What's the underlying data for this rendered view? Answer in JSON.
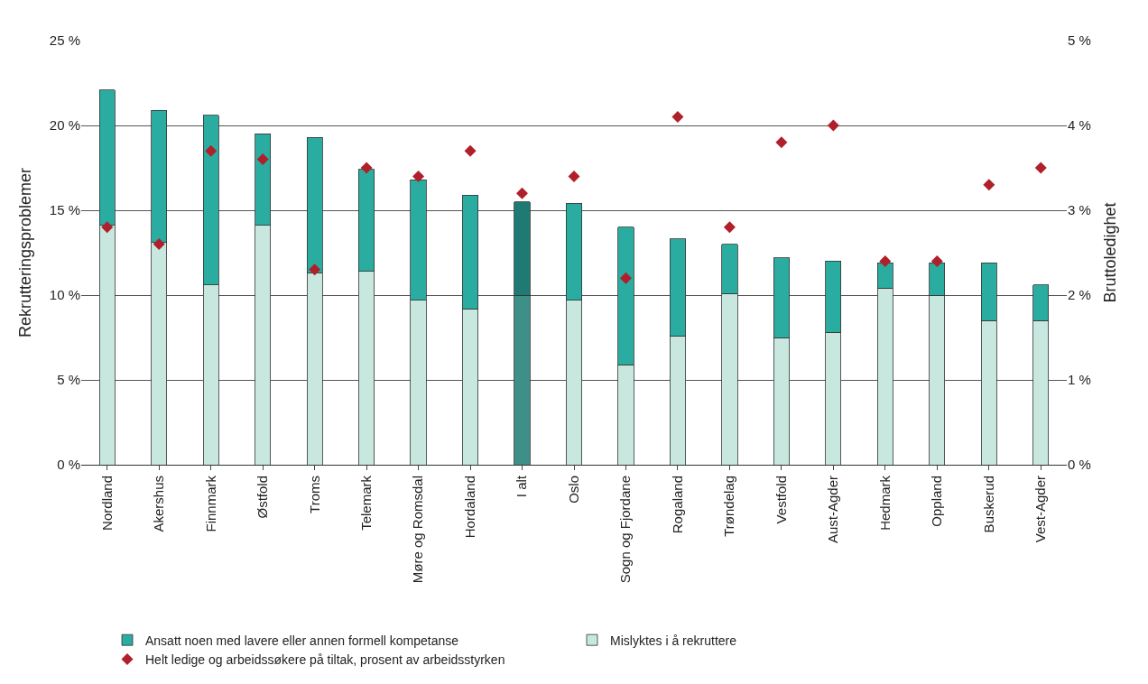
{
  "chart_data": {
    "type": "bar",
    "stacked": true,
    "ylabel": "Rekrutteringsproblemer",
    "y2label": "Bruttoledighet",
    "categories": [
      "Nordland",
      "Akershus",
      "Finnmark",
      "Østfold",
      "Troms",
      "Telemark",
      "Møre og Romsdal",
      "Hordaland",
      "I alt",
      "Oslo",
      "Sogn og Fjordane",
      "Rogaland",
      "Trøndelag",
      "Vestfold",
      "Aust-Agder",
      "Hedmark",
      "Oppland",
      "Buskerud",
      "Vest-Agder"
    ],
    "series": [
      {
        "name": "Mislyktes i å rekruttere",
        "color": "#c8e8df",
        "colors": [
          "#c8e8df",
          "#c8e8df",
          "#c8e8df",
          "#c8e8df",
          "#c8e8df",
          "#c8e8df",
          "#c8e8df",
          "#c8e8df",
          "#3d8f88",
          "#c8e8df",
          "#c8e8df",
          "#c8e8df",
          "#c8e8df",
          "#c8e8df",
          "#c8e8df",
          "#c8e8df",
          "#c8e8df",
          "#c8e8df",
          "#c8e8df"
        ],
        "values": [
          14.1,
          13.1,
          10.6,
          14.1,
          11.3,
          11.4,
          9.7,
          9.2,
          10.0,
          9.7,
          5.9,
          7.6,
          10.1,
          7.5,
          7.8,
          10.4,
          10.0,
          8.5,
          8.5
        ]
      },
      {
        "name": "Ansatt noen med lavere eller annen formell kompetanse",
        "color": "#2aada0",
        "colors": [
          "#2aada0",
          "#2aada0",
          "#2aada0",
          "#2aada0",
          "#2aada0",
          "#2aada0",
          "#2aada0",
          "#2aada0",
          "#1e7a72",
          "#2aada0",
          "#2aada0",
          "#2aada0",
          "#2aada0",
          "#2aada0",
          "#2aada0",
          "#2aada0",
          "#2aada0",
          "#2aada0",
          "#2aada0"
        ],
        "values": [
          8.0,
          7.8,
          10.0,
          5.4,
          8.0,
          6.0,
          7.1,
          6.7,
          5.5,
          5.7,
          8.1,
          5.7,
          2.9,
          4.7,
          4.2,
          1.5,
          1.9,
          3.4,
          2.1
        ]
      },
      {
        "name": "Helt ledige og arbeidssøkere på tiltak, prosent av arbeidsstyrken",
        "type": "scatter",
        "axis": "y2",
        "marker": "diamond",
        "color": "#b0202a",
        "values": [
          2.8,
          2.6,
          3.7,
          3.6,
          2.3,
          3.5,
          3.4,
          3.7,
          3.2,
          3.4,
          2.2,
          4.1,
          2.8,
          3.8,
          4.0,
          2.4,
          2.4,
          3.3,
          3.5
        ]
      }
    ],
    "ylim": [
      0,
      25
    ],
    "yticks": [
      {
        "value": 0,
        "label": "0 %"
      },
      {
        "value": 5,
        "label": "5 %"
      },
      {
        "value": 10,
        "label": "10 %"
      },
      {
        "value": 15,
        "label": "15 %"
      },
      {
        "value": 20,
        "label": "20 %"
      },
      {
        "value": 25,
        "label": "25 %"
      }
    ],
    "y2lim": [
      0,
      5
    ],
    "y2ticks": [
      {
        "value": 0,
        "label": "0 %"
      },
      {
        "value": 1,
        "label": "1 %"
      },
      {
        "value": 2,
        "label": "2 %"
      },
      {
        "value": 3,
        "label": "3 %"
      },
      {
        "value": 4,
        "label": "4 %"
      },
      {
        "value": 5,
        "label": "5 %"
      }
    ],
    "grid": "y",
    "legend": "bottom"
  }
}
